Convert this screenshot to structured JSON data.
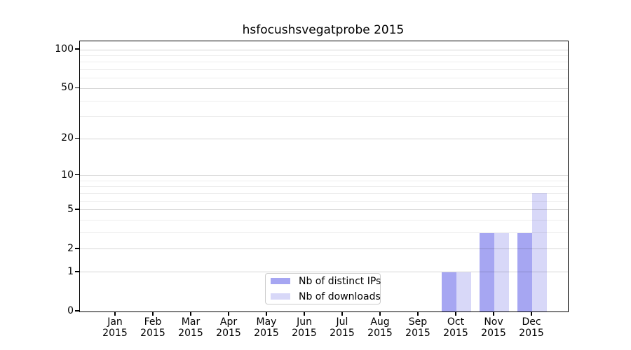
{
  "chart_data": {
    "type": "bar",
    "title": "hsfocushsvegatprobe 2015",
    "categories": [
      "Jan",
      "Feb",
      "Mar",
      "Apr",
      "May",
      "Jun",
      "Jul",
      "Aug",
      "Sep",
      "Oct",
      "Nov",
      "Dec"
    ],
    "category_year": "2015",
    "series": [
      {
        "name": "Nb of distinct IPs",
        "color": "#a6a6f2",
        "values": [
          0,
          0,
          0,
          0,
          0,
          0,
          0,
          0,
          0,
          1,
          3,
          3
        ]
      },
      {
        "name": "Nb of downloads",
        "color": "#d8d8f8",
        "values": [
          0,
          0,
          0,
          0,
          0,
          0,
          0,
          0,
          0,
          1,
          3,
          7
        ]
      }
    ],
    "yscale": "log1p",
    "ylim": [
      0,
      116
    ],
    "y_major_ticks": [
      0,
      1,
      2,
      5,
      10,
      20,
      50,
      100
    ],
    "y_minor_ticks": [
      3,
      4,
      6,
      7,
      8,
      9,
      30,
      40,
      60,
      70,
      80,
      90
    ],
    "grid": true,
    "legend_position": "lower center",
    "xlabel": "",
    "ylabel": ""
  }
}
